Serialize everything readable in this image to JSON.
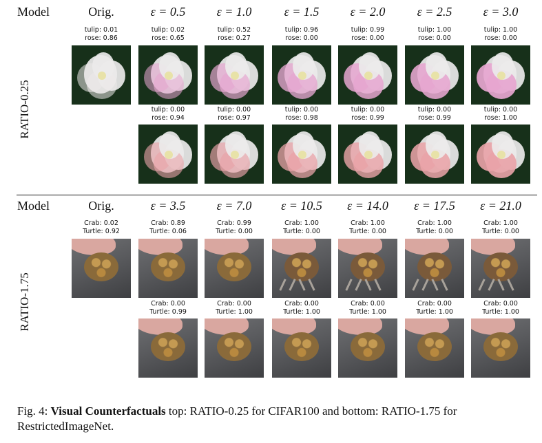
{
  "top": {
    "model_label": "Model",
    "side_label": "RATIO-0.25",
    "headers": [
      "Orig.",
      "ε = 0.5",
      "ε = 1.0",
      "ε = 1.5",
      "ε = 2.0",
      "ε = 2.5",
      "ε = 3.0"
    ],
    "row1_captions": [
      [
        "tulip: 0.01",
        "rose: 0.86"
      ],
      [
        "tulip: 0.02",
        "rose: 0.65"
      ],
      [
        "tulip: 0.52",
        "rose: 0.27"
      ],
      [
        "tulip: 0.96",
        "rose: 0.00"
      ],
      [
        "tulip: 0.99",
        "rose: 0.00"
      ],
      [
        "tulip: 1.00",
        "rose: 0.00"
      ],
      [
        "tulip: 1.00",
        "rose: 0.00"
      ]
    ],
    "row2_captions": [
      [
        "tulip: 0.00",
        "rose: 0.94"
      ],
      [
        "tulip: 0.00",
        "rose: 0.97"
      ],
      [
        "tulip: 0.00",
        "rose: 0.98"
      ],
      [
        "tulip: 0.00",
        "rose: 0.99"
      ],
      [
        "tulip: 0.00",
        "rose: 0.99"
      ],
      [
        "tulip: 0.00",
        "rose: 1.00"
      ]
    ]
  },
  "bottom": {
    "model_label": "Model",
    "side_label": "RATIO-1.75",
    "headers": [
      "Orig.",
      "ε = 3.5",
      "ε = 7.0",
      "ε = 10.5",
      "ε = 14.0",
      "ε = 17.5",
      "ε = 21.0"
    ],
    "row1_captions": [
      [
        "Crab: 0.02",
        "Turtle: 0.92"
      ],
      [
        "Crab: 0.89",
        "Turtle: 0.06"
      ],
      [
        "Crab: 0.99",
        "Turtle: 0.00"
      ],
      [
        "Crab: 1.00",
        "Turtle: 0.00"
      ],
      [
        "Crab: 1.00",
        "Turtle: 0.00"
      ],
      [
        "Crab: 1.00",
        "Turtle: 0.00"
      ],
      [
        "Crab: 1.00",
        "Turtle: 0.00"
      ]
    ],
    "row2_captions": [
      [
        "Crab: 0.00",
        "Turtle: 0.99"
      ],
      [
        "Crab: 0.00",
        "Turtle: 1.00"
      ],
      [
        "Crab: 0.00",
        "Turtle: 1.00"
      ],
      [
        "Crab: 0.00",
        "Turtle: 1.00"
      ],
      [
        "Crab: 0.00",
        "Turtle: 1.00"
      ],
      [
        "Crab: 0.00",
        "Turtle: 1.00"
      ]
    ]
  },
  "caption": {
    "prefix": "Fig. 4: ",
    "bold": "Visual Counterfactuals",
    "rest": " top: RATIO-0.25 for CIFAR100 and bottom: RATIO-1.75 for RestrictedImageNet."
  },
  "colors": {
    "flower_bg": "#17301a",
    "flower_petal": "#eceaea",
    "tulip_tint": "#e6a6d0",
    "rose_tint": "#e9a3a8",
    "ground": "#5a5b5e",
    "hand": "#d9a7a0",
    "shell": "#8a6a3a"
  }
}
